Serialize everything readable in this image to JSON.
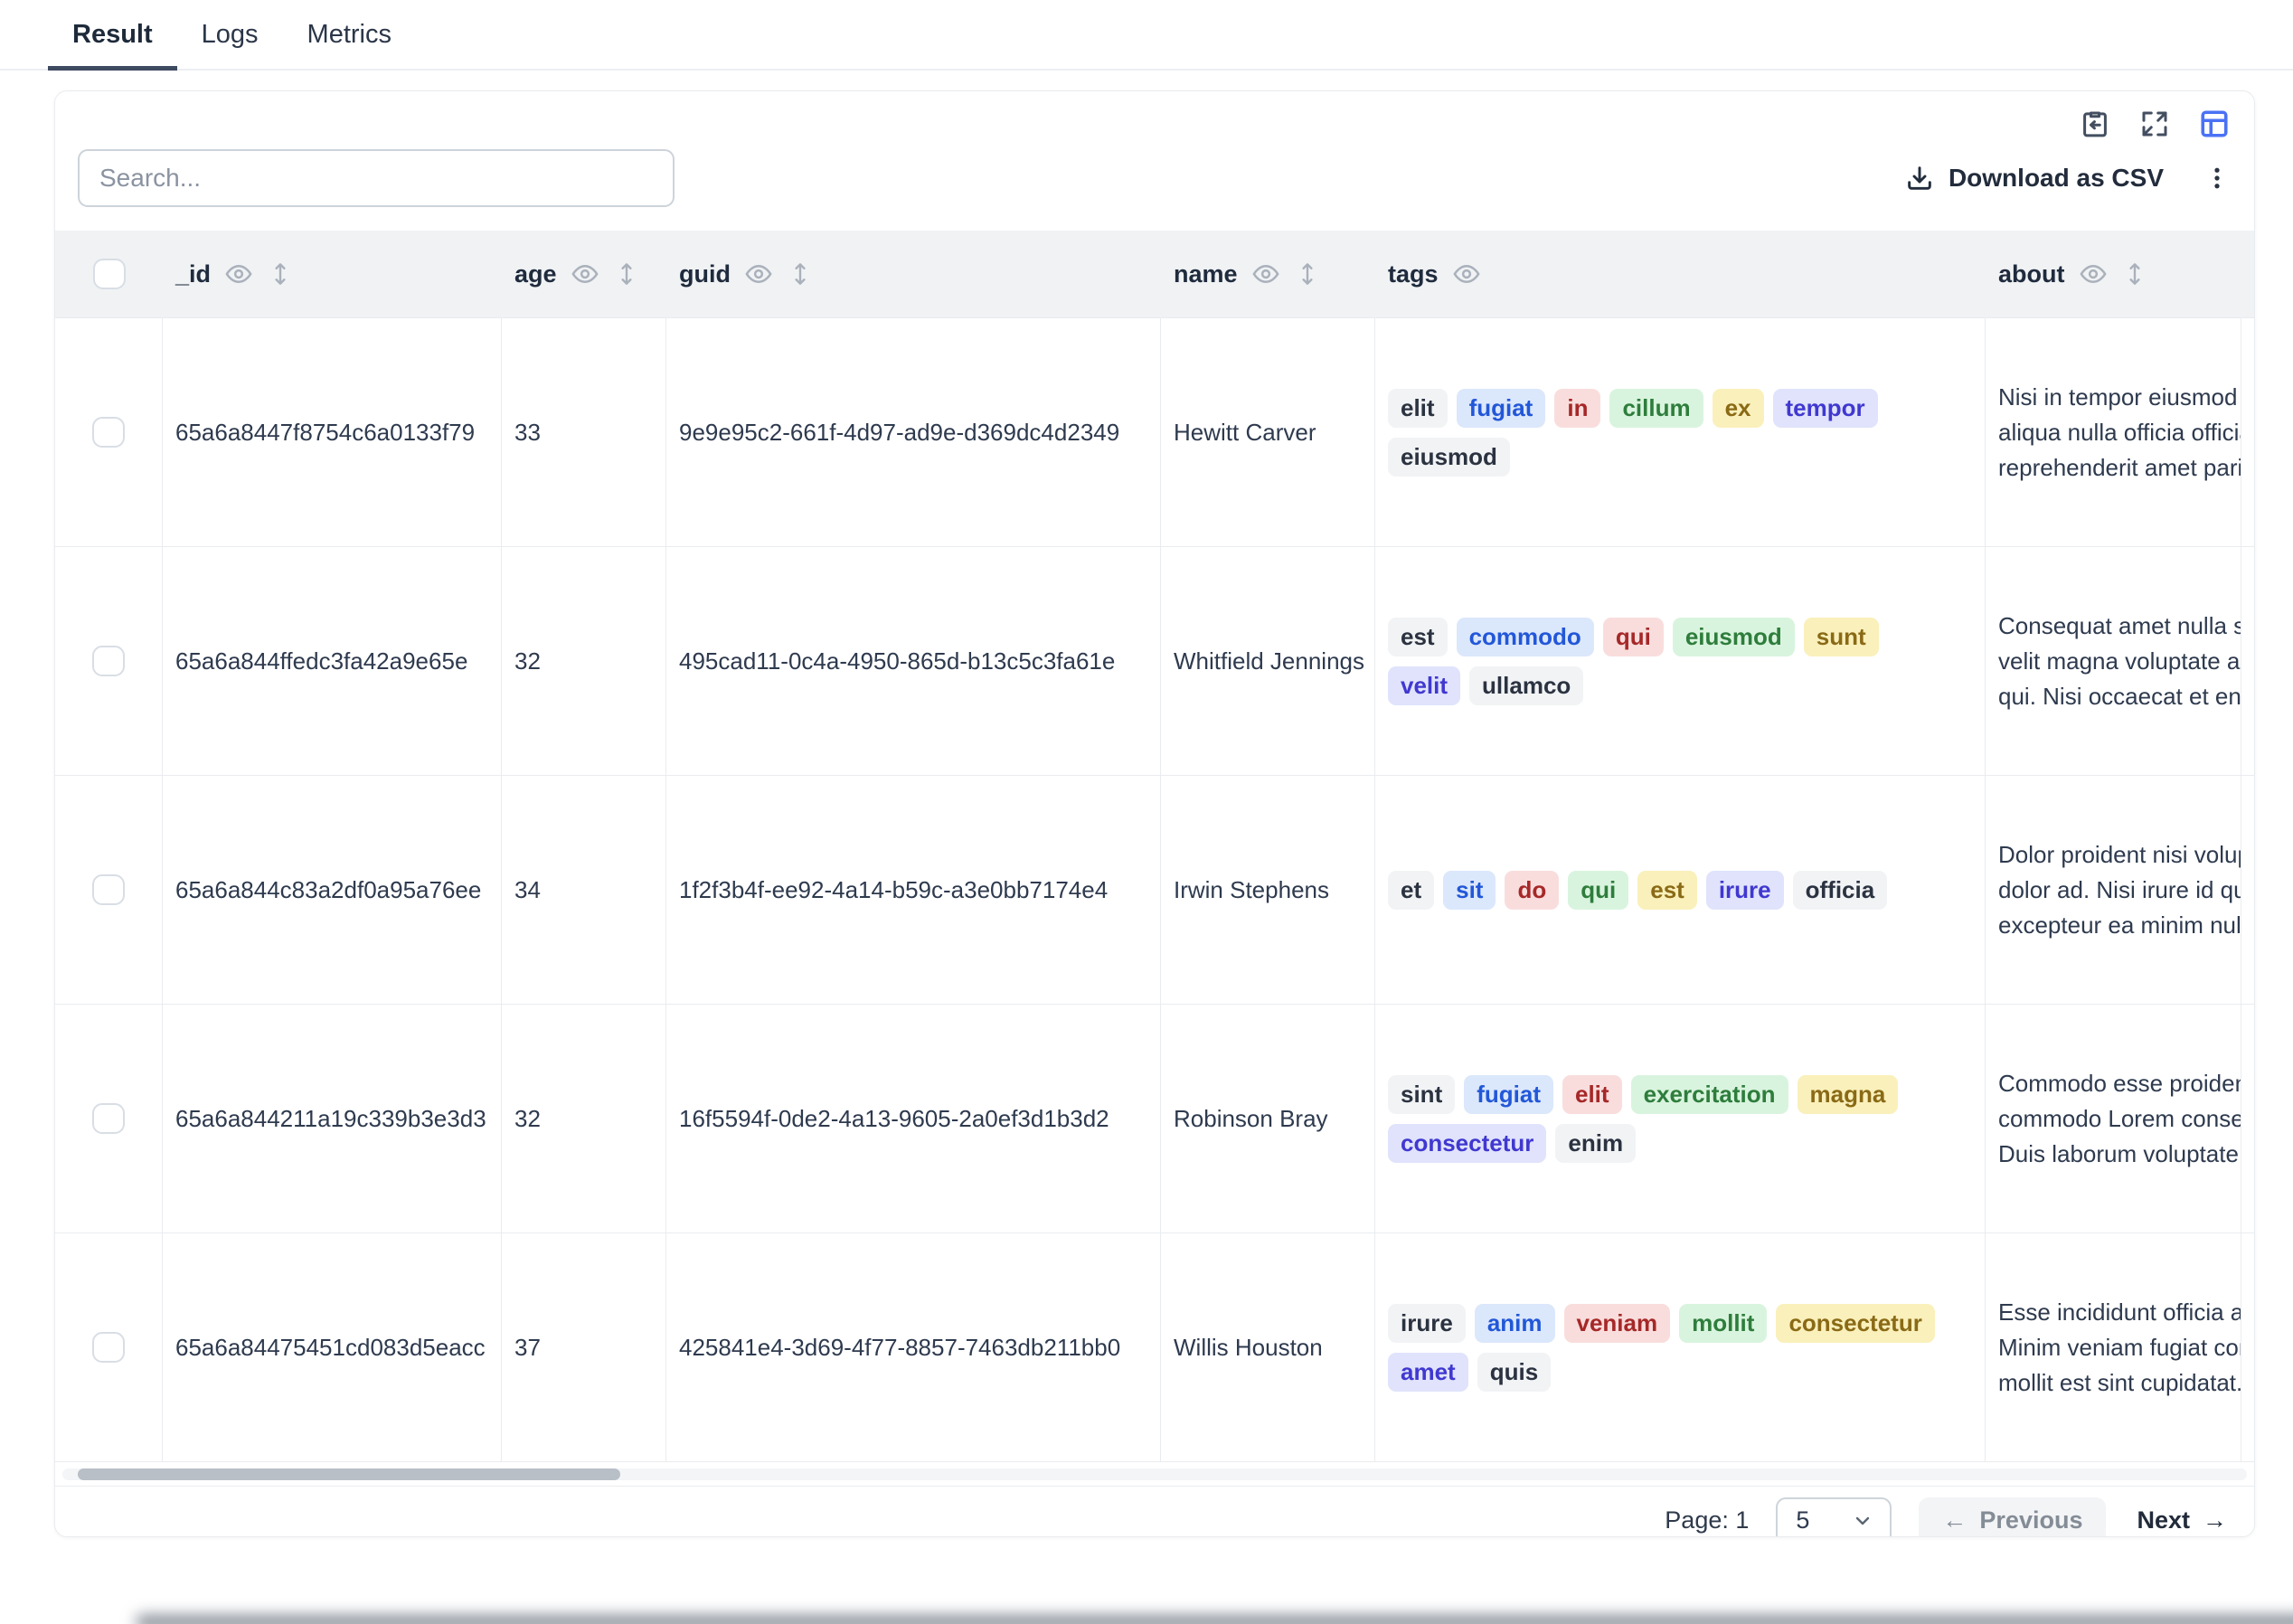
{
  "tabs": [
    {
      "label": "Result",
      "active": true
    },
    {
      "label": "Logs",
      "active": false
    },
    {
      "label": "Metrics",
      "active": false
    }
  ],
  "panel_icons": [
    {
      "name": "copy-to-clipboard-icon",
      "shape": "clipboard-with-back-arrow",
      "color": "#434e60"
    },
    {
      "name": "expand-icon",
      "shape": "diagonal-outward-arrows",
      "color": "#434e60"
    },
    {
      "name": "table-view-icon",
      "shape": "table-grid",
      "color": "#4a72f5",
      "active": true
    }
  ],
  "toolbar": {
    "search_placeholder": "Search...",
    "download_label": "Download as CSV",
    "download_icon": "tray-down-arrow",
    "more_options_icon": "kebab-dots"
  },
  "table": {
    "columns": [
      {
        "key": "select",
        "label": "",
        "eye": false,
        "sort": false
      },
      {
        "key": "_id",
        "label": "_id",
        "eye": true,
        "sort": true
      },
      {
        "key": "age",
        "label": "age",
        "eye": true,
        "sort": true
      },
      {
        "key": "guid",
        "label": "guid",
        "eye": true,
        "sort": true
      },
      {
        "key": "name",
        "label": "name",
        "eye": true,
        "sort": true
      },
      {
        "key": "tags",
        "label": "tags",
        "eye": true,
        "sort": false
      },
      {
        "key": "about",
        "label": "about",
        "eye": true,
        "sort": true
      },
      {
        "key": "stub",
        "label": "",
        "eye": false,
        "sort": false
      }
    ],
    "header_icons": {
      "eye": "visibility-eye",
      "sort": "up-down-arrows"
    },
    "rows": [
      {
        "_id": "65a6a8447f8754c6a0133f79",
        "age": "33",
        "guid": "9e9e95c2-661f-4d97-ad9e-d369dc4d2349",
        "name": "Hewitt Carver",
        "tags": [
          {
            "t": "elit",
            "c": "gray"
          },
          {
            "t": "fugiat",
            "c": "blue"
          },
          {
            "t": "in",
            "c": "red"
          },
          {
            "t": "cillum",
            "c": "green"
          },
          {
            "t": "ex",
            "c": "yellow"
          },
          {
            "t": "tempor",
            "c": "purple"
          },
          {
            "t": "eiusmod",
            "c": "gray"
          }
        ],
        "about": [
          "Nisi in tempor eiusmod nulla",
          "aliqua nulla officia officia. Ad",
          "reprehenderit amet pariatur"
        ]
      },
      {
        "_id": "65a6a844ffedc3fa42a9e65e",
        "age": "32",
        "guid": "495cad11-0c4a-4950-865d-b13c5c3fa61e",
        "name": "Whitfield Jennings",
        "tags": [
          {
            "t": "est",
            "c": "gray"
          },
          {
            "t": "commodo",
            "c": "blue"
          },
          {
            "t": "qui",
            "c": "red"
          },
          {
            "t": "eiusmod",
            "c": "green"
          },
          {
            "t": "sunt",
            "c": "yellow"
          },
          {
            "t": "velit",
            "c": "purple"
          },
          {
            "t": "ullamco",
            "c": "gray"
          }
        ],
        "about": [
          "Consequat amet nulla sit aute",
          "velit magna voluptate aliquip",
          "qui. Nisi occaecat et enim ad"
        ]
      },
      {
        "_id": "65a6a844c83a2df0a95a76ee",
        "age": "34",
        "guid": "1f2f3b4f-ee92-4a14-b59c-a3e0bb7174e4",
        "name": "Irwin Stephens",
        "tags": [
          {
            "t": "et",
            "c": "gray"
          },
          {
            "t": "sit",
            "c": "blue"
          },
          {
            "t": "do",
            "c": "red"
          },
          {
            "t": "qui",
            "c": "green"
          },
          {
            "t": "est",
            "c": "yellow"
          },
          {
            "t": "irure",
            "c": "purple"
          },
          {
            "t": "officia",
            "c": "gray"
          }
        ],
        "about": [
          "Dolor proident nisi voluptate",
          "dolor ad. Nisi irure id quis ex",
          "excepteur ea minim nulla ut"
        ]
      },
      {
        "_id": "65a6a844211a19c339b3e3d3",
        "age": "32",
        "guid": "16f5594f-0de2-4a13-9605-2a0ef3d1b3d2",
        "name": "Robinson Bray",
        "tags": [
          {
            "t": "sint",
            "c": "gray"
          },
          {
            "t": "fugiat",
            "c": "blue"
          },
          {
            "t": "elit",
            "c": "red"
          },
          {
            "t": "exercitation",
            "c": "green"
          },
          {
            "t": "magna",
            "c": "yellow"
          },
          {
            "t": "consectetur",
            "c": "purple"
          },
          {
            "t": "enim",
            "c": "gray"
          }
        ],
        "about": [
          "Commodo esse proident ex",
          "commodo Lorem consequat",
          "Duis laborum voluptate cons"
        ]
      },
      {
        "_id": "65a6a84475451cd083d5eacc",
        "age": "37",
        "guid": "425841e4-3d69-4f77-8857-7463db211bb0",
        "name": "Willis Houston",
        "tags": [
          {
            "t": "irure",
            "c": "gray"
          },
          {
            "t": "anim",
            "c": "blue"
          },
          {
            "t": "veniam",
            "c": "red"
          },
          {
            "t": "mollit",
            "c": "green"
          },
          {
            "t": "consectetur",
            "c": "yellow"
          },
          {
            "t": "amet",
            "c": "purple"
          },
          {
            "t": "quis",
            "c": "gray"
          }
        ],
        "about": [
          "Esse incididunt officia adipis",
          "Minim veniam fugiat commo",
          "mollit est sint cupidatat. Des"
        ]
      }
    ]
  },
  "pagination": {
    "page_label": "Page:",
    "page_number": "1",
    "page_size": "5",
    "previous_label": "Previous",
    "next_label": "Next",
    "prev_arrow": "←",
    "next_arrow": "→",
    "chevron_down_icon": "chevron-down"
  },
  "colors": {
    "accent_blue": "#4a72f5",
    "header_bg": "#f0f2f4",
    "border": "#e9ecef",
    "tag_gray_bg": "#f1f3f5",
    "tag_blue_bg": "#dbe7fb",
    "tag_red_bg": "#f9dddd",
    "tag_green_bg": "#d9f4de",
    "tag_yellow_bg": "#faf0bb",
    "tag_purple_bg": "#e0e3fb"
  }
}
